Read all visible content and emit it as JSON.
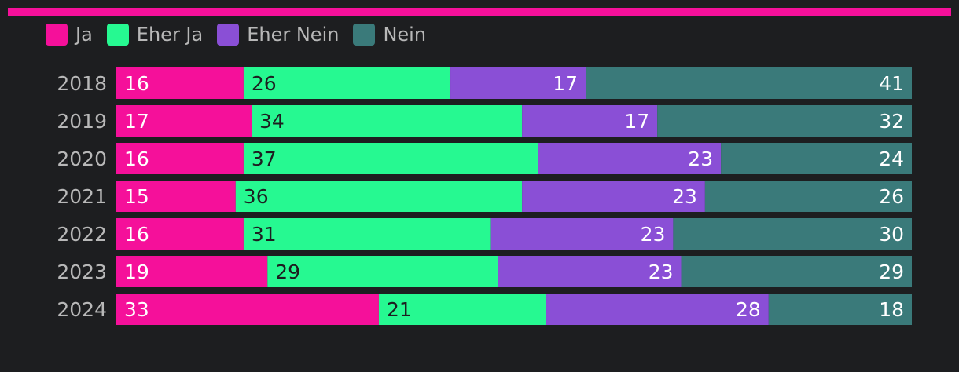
{
  "chart_data": {
    "type": "bar",
    "orientation": "horizontal",
    "stacked": true,
    "categories": [
      "2018",
      "2019",
      "2020",
      "2021",
      "2022",
      "2023",
      "2024"
    ],
    "series": [
      {
        "name": "Ja",
        "color": "#f5109a",
        "text_color": "#ffffff",
        "values": [
          16,
          17,
          16,
          15,
          16,
          19,
          33
        ]
      },
      {
        "name": "Eher Ja",
        "color": "#26f991",
        "text_color": "#1d1e20",
        "values": [
          26,
          34,
          37,
          36,
          31,
          29,
          21
        ]
      },
      {
        "name": "Eher Nein",
        "color": "#8a4fd6",
        "text_color": "#ffffff",
        "values": [
          17,
          17,
          23,
          23,
          23,
          23,
          28
        ]
      },
      {
        "name": "Nein",
        "color": "#3a7a7a",
        "text_color": "#ffffff",
        "values": [
          41,
          32,
          24,
          26,
          30,
          29,
          18
        ]
      }
    ],
    "legend_position": "top-left",
    "xlim": [
      0,
      100
    ]
  },
  "theme": {
    "background": "#1d1e20",
    "accent": "#f5109a",
    "text": "#b8b8b8"
  }
}
